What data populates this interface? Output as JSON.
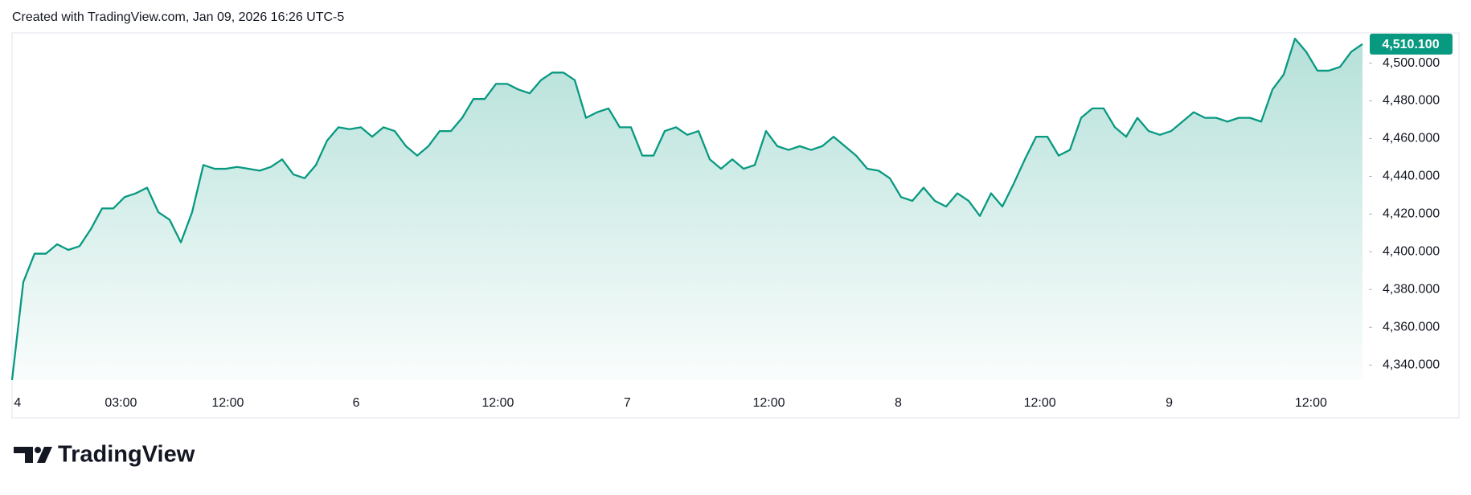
{
  "header": {
    "text": "Created with TradingView.com, Jan 09, 2026 16:26 UTC-5"
  },
  "footer": {
    "brand": "TradingView"
  },
  "chart_data": {
    "type": "area",
    "color": "#089981",
    "values": [
      4332,
      4384,
      4399,
      4399,
      4404,
      4401,
      4403,
      4412,
      4423,
      4423,
      4429,
      4431,
      4434,
      4421,
      4417,
      4405,
      4421,
      4446,
      4444,
      4444,
      4445,
      4444,
      4443,
      4445,
      4449,
      4441,
      4439,
      4446,
      4459,
      4466,
      4465,
      4466,
      4461,
      4466,
      4464,
      4456,
      4451,
      4456,
      4464,
      4464,
      4471,
      4481,
      4481,
      4489,
      4489,
      4486,
      4484,
      4491,
      4495,
      4495,
      4491,
      4471,
      4474,
      4476,
      4466,
      4466,
      4451,
      4451,
      4464,
      4466,
      4462,
      4464,
      4449,
      4444,
      4449,
      4444,
      4446,
      4464,
      4456,
      4454,
      4456,
      4454,
      4456,
      4461,
      4456,
      4451,
      4444,
      4443,
      4439,
      4429,
      4427,
      4434,
      4427,
      4424,
      4431,
      4427,
      4419,
      4431,
      4424,
      4436,
      4449,
      4461,
      4461,
      4451,
      4454,
      4471,
      4476,
      4476,
      4466,
      4461,
      4471,
      4464,
      4462,
      4464,
      4469,
      4474,
      4471,
      4471,
      4469,
      4471,
      4471,
      4469,
      4486,
      4494,
      4513,
      4506,
      4496,
      4496,
      4498,
      4506,
      4510.1
    ],
    "xlim": [
      0,
      120
    ],
    "xticks": [
      {
        "value": 0.17,
        "label": "4"
      },
      {
        "value": 9.67,
        "label": "03:00"
      },
      {
        "value": 19.17,
        "label": "12:00"
      },
      {
        "value": 30.58,
        "label": "6"
      },
      {
        "value": 43.17,
        "label": "12:00"
      },
      {
        "value": 54.67,
        "label": "7"
      },
      {
        "value": 67.25,
        "label": "12:00"
      },
      {
        "value": 78.75,
        "label": "8"
      },
      {
        "value": 91.33,
        "label": "12:00"
      },
      {
        "value": 102.83,
        "label": "9"
      },
      {
        "value": 115.42,
        "label": "12:00"
      }
    ],
    "ylim": [
      4332,
      4516
    ],
    "yticks": [
      {
        "value": 4340,
        "label": "4,340.000"
      },
      {
        "value": 4360,
        "label": "4,360.000"
      },
      {
        "value": 4380,
        "label": "4,380.000"
      },
      {
        "value": 4400,
        "label": "4,400.000"
      },
      {
        "value": 4420,
        "label": "4,420.000"
      },
      {
        "value": 4440,
        "label": "4,440.000"
      },
      {
        "value": 4460,
        "label": "4,460.000"
      },
      {
        "value": 4480,
        "label": "4,480.000"
      },
      {
        "value": 4500,
        "label": "4,500.000"
      }
    ],
    "last_price": {
      "value": 4510.1,
      "label": "4,510.100"
    }
  }
}
